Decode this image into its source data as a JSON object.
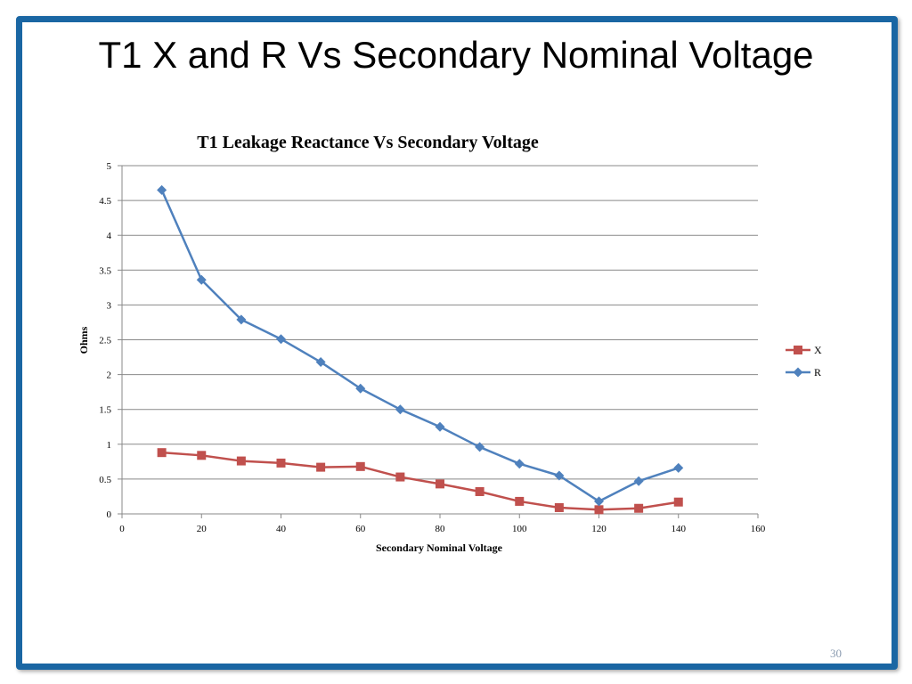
{
  "slide": {
    "title": "T1 X and R Vs Secondary Nominal Voltage",
    "number": "30"
  },
  "colors": {
    "frame": "#1a66a3",
    "x_series": "#c0504d",
    "r_series": "#4f81bd",
    "grid": "#898989"
  },
  "chart_data": {
    "type": "line",
    "title": "T1 Leakage Reactance Vs Secondary Voltage",
    "xlabel": "Secondary Nominal Voltage",
    "ylabel": "Ohms",
    "xlim": [
      0,
      160
    ],
    "ylim": [
      0,
      5
    ],
    "x_ticks": [
      0,
      20,
      40,
      60,
      80,
      100,
      120,
      140,
      160
    ],
    "y_ticks": [
      0,
      0.5,
      1,
      1.5,
      2,
      2.5,
      3,
      3.5,
      4,
      4.5,
      5
    ],
    "grid": "horizontal",
    "legend_position": "right",
    "x": [
      10,
      20,
      30,
      40,
      50,
      60,
      70,
      80,
      90,
      100,
      110,
      120,
      130,
      140
    ],
    "series": [
      {
        "name": "X",
        "marker": "square",
        "color": "#c0504d",
        "values": [
          0.88,
          0.84,
          0.76,
          0.73,
          0.67,
          0.68,
          0.53,
          0.43,
          0.32,
          0.18,
          0.09,
          0.06,
          0.08,
          0.17
        ]
      },
      {
        "name": "R",
        "marker": "diamond",
        "color": "#4f81bd",
        "values": [
          4.65,
          3.36,
          2.79,
          2.51,
          2.18,
          1.8,
          1.5,
          1.25,
          0.96,
          0.72,
          0.55,
          0.18,
          0.47,
          0.66
        ]
      }
    ]
  }
}
